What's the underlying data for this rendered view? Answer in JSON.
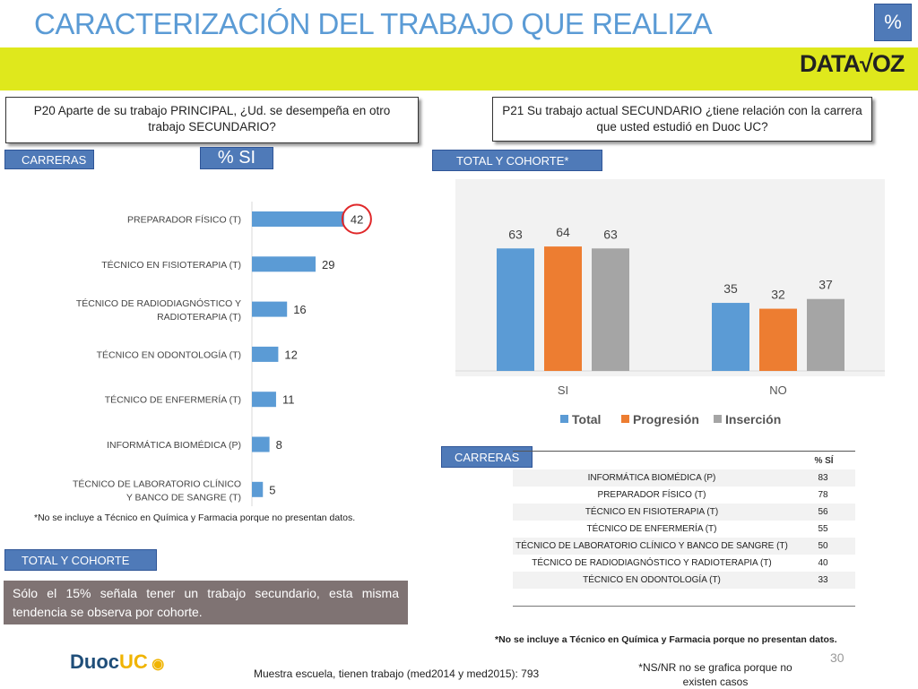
{
  "header": {
    "title": "CARACTERIZACIÓN DEL TRABAJO QUE REALIZA",
    "badge": "%",
    "logo_left": "DATA",
    "logo_right": "OZ"
  },
  "q20": {
    "text": "P20 Aparte de su trabajo PRINCIPAL, ¿Ud. se desempeña en otro trabajo SECUNDARIO?",
    "tag": "CARRERAS",
    "pct_label": "% SI",
    "note": "*No se incluye a  Técnico en Química y Farmacia porque no presentan datos."
  },
  "q21": {
    "text": "P21 Su trabajo actual SECUNDARIO  ¿tiene relación con la carrera que usted estudió en Duoc UC?",
    "tag": "TOTAL Y COHORTE*"
  },
  "total_cohorte_tag": "TOTAL Y COHORTE",
  "summary": "Sólo el 15% señala tener un trabajo secundario, esta misma tendencia se observa por cohorte.",
  "carreras_table": {
    "tag": "CARRERAS",
    "header": "% SÍ",
    "rows": [
      {
        "label": "INFORMÁTICA BIOMÉDICA (P)",
        "value": "83"
      },
      {
        "label": "PREPARADOR FÍSICO (T)",
        "value": "78"
      },
      {
        "label": "TÉCNICO EN FISIOTERAPIA (T)",
        "value": "56"
      },
      {
        "label": "TÉCNICO DE ENFERMERÍA (T)",
        "value": "55"
      },
      {
        "label": "TÉCNICO DE LABORATORIO CLÍNICO Y BANCO DE SANGRE (T)",
        "value": "50"
      },
      {
        "label": "TÉCNICO DE RADIODIAGNÓSTICO Y RADIOTERAPIA (T)",
        "value": "40"
      },
      {
        "label": "TÉCNICO EN ODONTOLOGÍA (T)",
        "value": "33"
      }
    ],
    "note": "*No se incluye a  Técnico en Química y Farmacia porque no presentan datos."
  },
  "footer": {
    "brand_left": "Duoc",
    "brand_right": "UC",
    "sample": "Muestra escuela, tienen trabajo (med2014 y med2015): 793",
    "nsnr": "*NS/NR no se grafica porque no existen casos",
    "page": "30"
  },
  "colors": {
    "blue": "#5b9bd5",
    "orange": "#ed7d31",
    "gray": "#a5a5a5",
    "highlight": "#e0282a"
  },
  "chart_data": [
    {
      "type": "bar",
      "orientation": "horizontal",
      "categories": [
        "PREPARADOR FÍSICO (T)",
        "TÉCNICO EN FISIOTERAPIA (T)",
        "TÉCNICO DE RADIODIAGNÓSTICO Y RADIOTERAPIA (T)",
        "TÉCNICO EN ODONTOLOGÍA (T)",
        "TÉCNICO DE ENFERMERÍA (T)",
        "INFORMÁTICA BIOMÉDICA (P)",
        "TÉCNICO DE LABORATORIO CLÍNICO Y BANCO DE SANGRE (T)"
      ],
      "values": [
        42,
        29,
        16,
        12,
        11,
        8,
        5
      ],
      "highlight_index": 0,
      "xlim": [
        0,
        50
      ]
    },
    {
      "type": "bar",
      "categories": [
        "SI",
        "NO"
      ],
      "series": [
        {
          "name": "Total",
          "values": [
            63,
            35
          ]
        },
        {
          "name": "Progresión",
          "values": [
            64,
            32
          ]
        },
        {
          "name": "Inserción",
          "values": [
            63,
            37
          ]
        }
      ],
      "ylim": [
        0,
        100
      ],
      "legend": "bottom"
    }
  ]
}
